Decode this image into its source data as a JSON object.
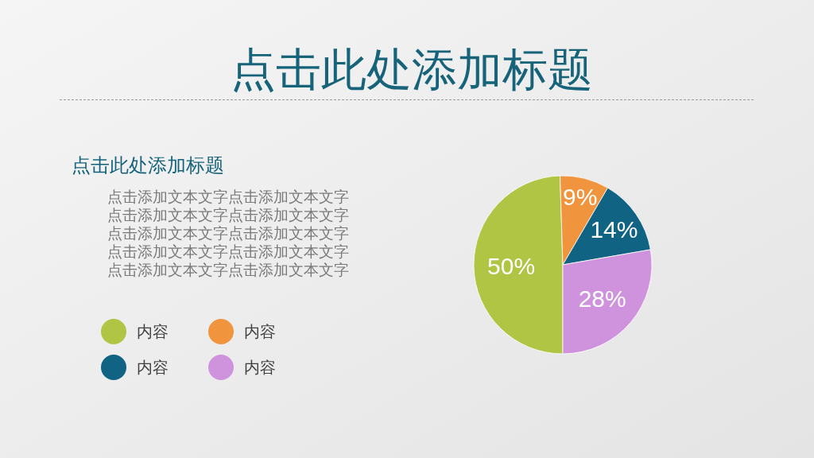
{
  "chart_data": {
    "type": "pie",
    "title": "点击此处添加标题",
    "subtitle": "点击此处添加标题",
    "annotations": [
      "点击添加文本文字点击添加文本文字",
      "点击添加文本文字点击添加文本文字",
      "点击添加文本文字点击添加文本文字",
      "点击添加文本文字点击添加文本文字",
      "点击添加文本文字点击添加文本文字"
    ],
    "categories": [
      "内容",
      "内容",
      "内容",
      "内容"
    ],
    "values": [
      50,
      9,
      14,
      28
    ],
    "colors": [
      "#afc543",
      "#f0953d",
      "#116383",
      "#cf93dd"
    ],
    "value_labels": [
      "50%",
      "9%",
      "14%",
      "28%"
    ],
    "legend": "left"
  }
}
